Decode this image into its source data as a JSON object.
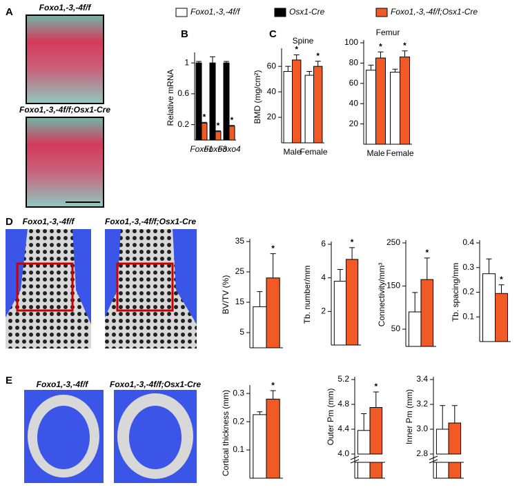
{
  "panel_labels": [
    "A",
    "B",
    "C",
    "D",
    "E"
  ],
  "image_labels": [
    "Foxo1,-3,-4f/f",
    "Foxo1,-3,-4f/f;Osx1-Cre",
    "Foxo1,-3,-4f/f",
    "Foxo1,-3,-4f/f;Osx1-Cre",
    "Foxo1,-3,-4f/f",
    "Foxo1,-3,-4f/f;Osx1-Cre"
  ],
  "legend": [
    {
      "name": "Foxo1,-3,-4f/f",
      "color": "#ffffff"
    },
    {
      "name": "Osx1-Cre",
      "color": "#000000"
    },
    {
      "name": "Foxo1,-3,-4f/f;Osx1-Cre",
      "color": "#f15a24"
    }
  ],
  "chart_data": [
    {
      "type": "bar",
      "ylabel": "Relative mRNA",
      "categories": [
        "Foxo1",
        "Foxo3",
        "Foxo4"
      ],
      "ylim": [
        0,
        1.1
      ],
      "yticks": [
        0.2,
        0.6,
        1.0
      ],
      "series": [
        {
          "name": "Osx1-Cre",
          "color": "#000000",
          "values": [
            1.0,
            1.0,
            1.0
          ],
          "errors": [
            0.02,
            0.08,
            0.02
          ]
        },
        {
          "name": "Foxo1,-3,-4f/f;Osx1-Cre",
          "color": "#f15a24",
          "values": [
            0.22,
            0.11,
            0.18
          ],
          "errors": [
            0.01,
            0.01,
            0.01
          ],
          "labels": [
            "*",
            "*",
            "*"
          ]
        }
      ]
    },
    {
      "type": "bar",
      "title": "Spine",
      "ylabel": "BMD (mg/cm²)",
      "categories": [
        "Male",
        "Female"
      ],
      "ylim": [
        0,
        72
      ],
      "yticks": [
        20,
        40,
        60
      ],
      "series": [
        {
          "name": "Foxo1,-3,-4f/f",
          "color": "#ffffff",
          "values": [
            56,
            53
          ],
          "errors": [
            4,
            3
          ]
        },
        {
          "name": "Foxo1,-3,-4f/f;Osx1-Cre",
          "color": "#f15a24",
          "values": [
            65,
            60
          ],
          "errors": [
            4,
            4
          ],
          "labels": [
            "*",
            "*"
          ]
        }
      ]
    },
    {
      "type": "bar",
      "title": "Femur",
      "categories": [
        "Male",
        "Female"
      ],
      "ylim": [
        0,
        100
      ],
      "yticks": [
        20,
        40,
        60,
        80,
        100
      ],
      "series": [
        {
          "name": "Foxo1,-3,-4f/f",
          "color": "#ffffff",
          "values": [
            73,
            71
          ],
          "errors": [
            5,
            3
          ]
        },
        {
          "name": "Foxo1,-3,-4f/f;Osx1-Cre",
          "color": "#f15a24",
          "values": [
            85,
            86
          ],
          "errors": [
            6,
            6
          ],
          "labels": [
            "*",
            "*"
          ]
        }
      ]
    },
    {
      "type": "bar",
      "ylabel": "BV/TV (%)",
      "categories": [
        null
      ],
      "ylim": [
        0,
        35
      ],
      "yticks": [
        5,
        15,
        25,
        35
      ],
      "series": [
        {
          "name": "Foxo1,-3,-4f/f",
          "color": "#ffffff",
          "values": [
            13.5
          ],
          "errors": [
            5
          ]
        },
        {
          "name": "Foxo1,-3,-4f/f;Osx1-Cre",
          "color": "#f15a24",
          "values": [
            23
          ],
          "errors": [
            8
          ],
          "labels": [
            "*"
          ]
        }
      ]
    },
    {
      "type": "bar",
      "ylabel": "Tb. number/mm",
      "categories": [
        null
      ],
      "ylim": [
        0,
        6
      ],
      "yticks": [
        2,
        4,
        6
      ],
      "series": [
        {
          "name": "Foxo1,-3,-4f/f",
          "color": "#ffffff",
          "values": [
            3.8
          ],
          "errors": [
            0.7
          ]
        },
        {
          "name": "Foxo1,-3,-4f/f;Osx1-Cre",
          "color": "#f15a24",
          "values": [
            5.1
          ],
          "errors": [
            0.7
          ],
          "labels": [
            "*"
          ]
        }
      ]
    },
    {
      "type": "bar",
      "ylabel": "Connectivity/mm³",
      "categories": [
        null
      ],
      "ylim": [
        10,
        250
      ],
      "yticks": [
        50,
        150,
        250
      ],
      "series": [
        {
          "name": "Foxo1,-3,-4f/f",
          "color": "#ffffff",
          "values": [
            90
          ],
          "errors": [
            45
          ]
        },
        {
          "name": "Foxo1,-3,-4f/f;Osx1-Cre",
          "color": "#f15a24",
          "values": [
            165
          ],
          "errors": [
            50
          ],
          "labels": [
            "*"
          ]
        }
      ]
    },
    {
      "type": "bar",
      "ylabel": "Tb. spacing/mm",
      "categories": [
        null
      ],
      "ylim": [
        0,
        0.4
      ],
      "yticks": [
        0.1,
        0.2,
        0.3,
        0.4
      ],
      "series": [
        {
          "name": "Foxo1,-3,-4f/f",
          "color": "#ffffff",
          "values": [
            0.275
          ],
          "errors": [
            0.06
          ]
        },
        {
          "name": "Foxo1,-3,-4f/f;Osx1-Cre",
          "color": "#f15a24",
          "values": [
            0.195
          ],
          "errors": [
            0.035
          ],
          "labels": [
            "*"
          ]
        }
      ]
    },
    {
      "type": "bar",
      "ylabel": "Cortical thickness (mm)",
      "categories": [
        null
      ],
      "ylim": [
        0,
        0.32
      ],
      "yticks": [
        0.1,
        0.2,
        0.3
      ],
      "series": [
        {
          "name": "Foxo1,-3,-4f/f",
          "color": "#ffffff",
          "values": [
            0.225
          ],
          "errors": [
            0.01
          ]
        },
        {
          "name": "Foxo1,-3,-4f/f;Osx1-Cre",
          "color": "#f15a24",
          "values": [
            0.28
          ],
          "errors": [
            0.03
          ],
          "labels": [
            "*"
          ]
        }
      ]
    },
    {
      "type": "bar",
      "ylabel": "Outer Pm (mm)",
      "categories": [
        null
      ],
      "axis_break": true,
      "ylim": [
        4.0,
        5.2
      ],
      "yticks": [
        {
          "value": 4.0,
          "label": "4.0"
        },
        4.4,
        4.8,
        5.2
      ],
      "series": [
        {
          "name": "Foxo1,-3,-4f/f",
          "color": "#ffffff",
          "values": [
            4.38
          ],
          "errors": [
            0.27
          ]
        },
        {
          "name": "Foxo1,-3,-4f/f;Osx1-Cre",
          "color": "#f15a24",
          "values": [
            4.75
          ],
          "errors": [
            0.25
          ],
          "labels": [
            "*"
          ]
        }
      ]
    },
    {
      "type": "bar",
      "ylabel": "Inner Pm (mm)",
      "categories": [
        null
      ],
      "axis_break": true,
      "ylim": [
        2.8,
        3.4
      ],
      "yticks": [
        2.8,
        {
          "value": 3.0,
          "label": "3.0"
        },
        3.2,
        3.4
      ],
      "series": [
        {
          "name": "Foxo1,-3,-4f/f",
          "color": "#ffffff",
          "values": [
            3.0
          ],
          "errors": [
            0.19
          ]
        },
        {
          "name": "Foxo1,-3,-4f/f;Osx1-Cre",
          "color": "#f15a24",
          "values": [
            3.05
          ],
          "errors": [
            0.14
          ]
        }
      ]
    }
  ]
}
